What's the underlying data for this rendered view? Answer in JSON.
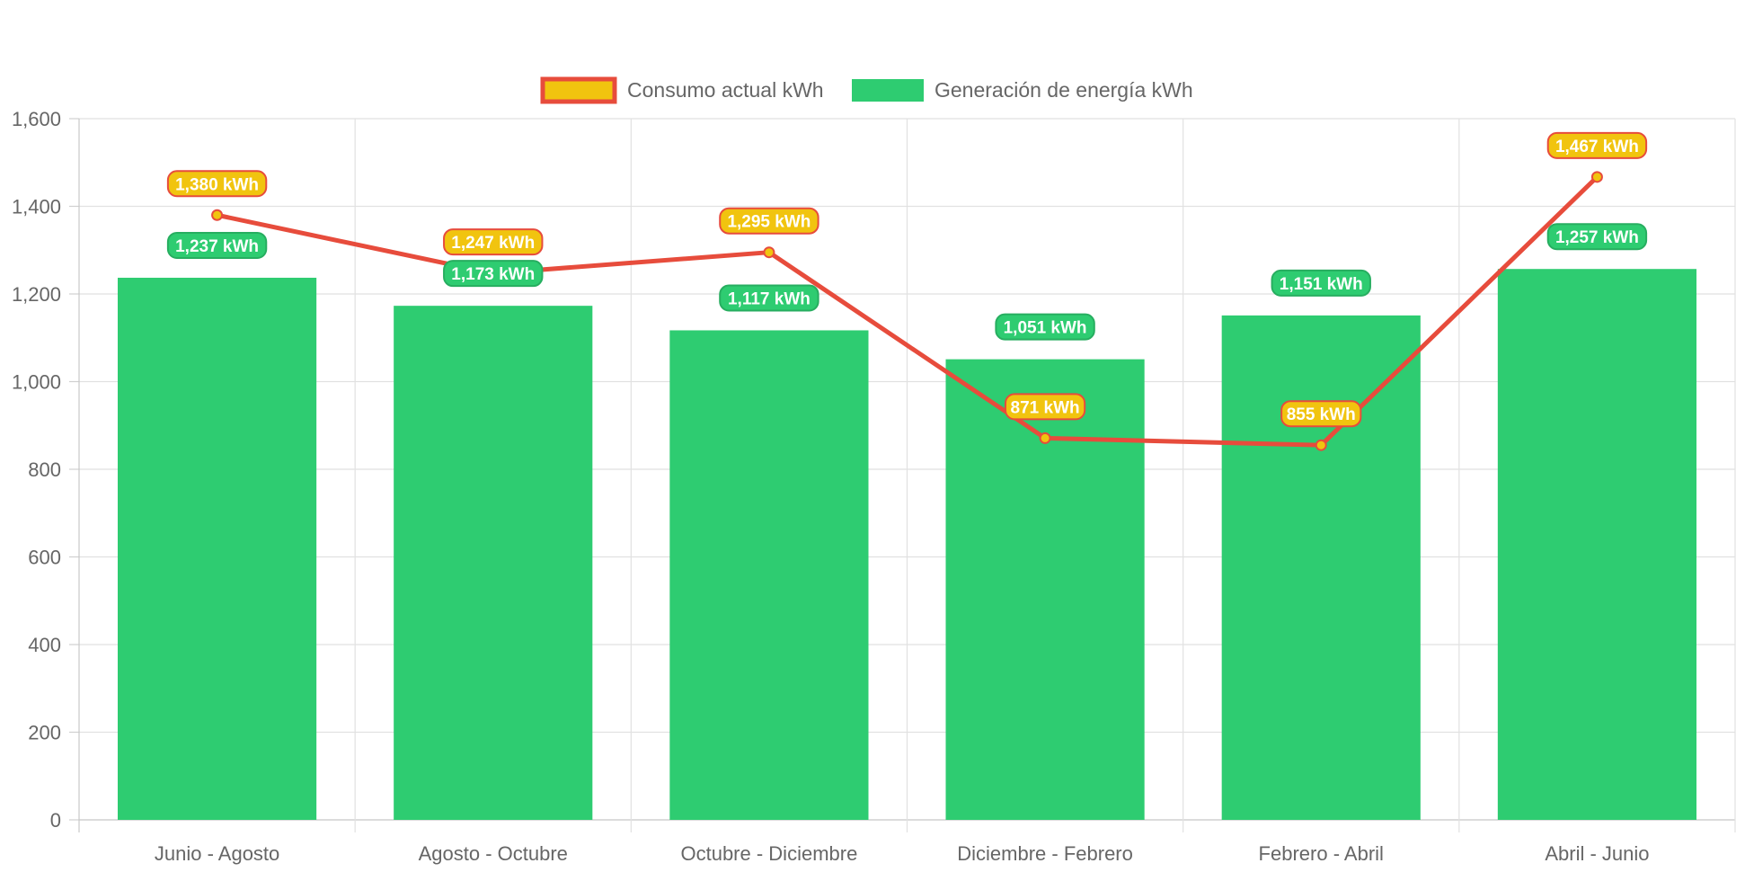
{
  "chart_data": {
    "type": "bar",
    "categories": [
      "Junio - Agosto",
      "Agosto - Octubre",
      "Octubre - Diciembre",
      "Diciembre - Febrero",
      "Febrero - Abril",
      "Abril - Junio"
    ],
    "series": [
      {
        "name": "Consumo actual kWh",
        "type": "line",
        "values": [
          1380,
          1247,
          1295,
          871,
          855,
          1467
        ],
        "labels": [
          "1,380 kWh",
          "1,247 kWh",
          "1,295 kWh",
          "871 kWh",
          "855 kWh",
          "1,467 kWh"
        ],
        "color": "#f1c40f",
        "line_color": "#e74c3c"
      },
      {
        "name": "Generación de energía kWh",
        "type": "bar",
        "values": [
          1237,
          1173,
          1117,
          1051,
          1151,
          1257
        ],
        "labels": [
          "1,237 kWh",
          "1,173 kWh",
          "1,117 kWh",
          "1,051 kWh",
          "1,151 kWh",
          "1,257 kWh"
        ],
        "color": "#2ecc71",
        "label_border_color": "#27ae60"
      }
    ],
    "y_ticks": [
      "0",
      "200",
      "400",
      "600",
      "800",
      "1,000",
      "1,200",
      "1,400",
      "1,600"
    ],
    "ylim": [
      0,
      1600
    ],
    "grid": true,
    "legend_position": "top"
  }
}
